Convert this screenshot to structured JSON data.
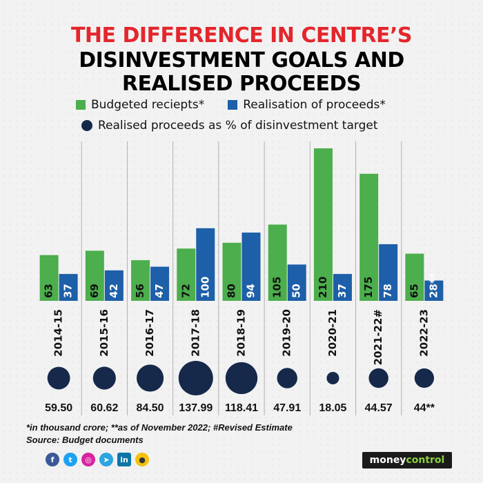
{
  "title": {
    "line1": "THE DIFFERENCE IN CENTRE’S",
    "line2": "DISINVESTMENT GOALS AND",
    "line3": "REALISED PROCEEDS"
  },
  "legend": {
    "budgeted": "Budgeted reciepts*",
    "realised": "Realisation of proceeds*",
    "percent": "Realised proceeds as % of disinvestment target"
  },
  "colors": {
    "budgeted": "#4cae4c",
    "realised": "#1d5fa8",
    "dot": "#16294a",
    "title_red": "#e3262c"
  },
  "chart_data": {
    "type": "bar",
    "categories": [
      "2014-15",
      "2015-16",
      "2016-17",
      "2017-18",
      "2018-19",
      "2019-20",
      "2020-21",
      "2021-22#",
      "2022-23"
    ],
    "series": [
      {
        "name": "Budgeted reciepts*",
        "values": [
          63,
          69,
          56,
          72,
          80,
          105,
          210,
          175,
          65
        ],
        "labels": [
          "63",
          "69",
          "56",
          "72",
          "80",
          "105",
          "210",
          "175",
          "65"
        ]
      },
      {
        "name": "Realisation of proceeds*",
        "values": [
          37,
          42,
          47,
          100,
          94,
          50,
          37,
          78,
          28
        ],
        "labels": [
          "37",
          "42",
          "47",
          "100",
          "94",
          "50",
          "37",
          "78",
          "28**"
        ]
      }
    ],
    "percent_series": {
      "name": "Realised proceeds as % of disinvestment target",
      "values": [
        59.5,
        60.62,
        84.5,
        137.99,
        118.41,
        47.91,
        18.05,
        44.57,
        44
      ],
      "labels": [
        "59.50",
        "60.62",
        "84.50",
        "137.99",
        "118.41",
        "47.91",
        "18.05",
        "44.57",
        "44**"
      ]
    },
    "ylim": [
      0,
      210
    ],
    "grid": "vertical separators",
    "legend_position": "top"
  },
  "footnotes": {
    "line1": "*in thousand crore; **as of November 2022; #Revised Estimate",
    "line2": "Source: Budget documents"
  },
  "social_icons": [
    "facebook-icon",
    "twitter-icon",
    "instagram-icon",
    "telegram-icon",
    "linkedin-icon",
    "koo-icon"
  ],
  "brand": {
    "main": "money",
    "accent": "control"
  }
}
